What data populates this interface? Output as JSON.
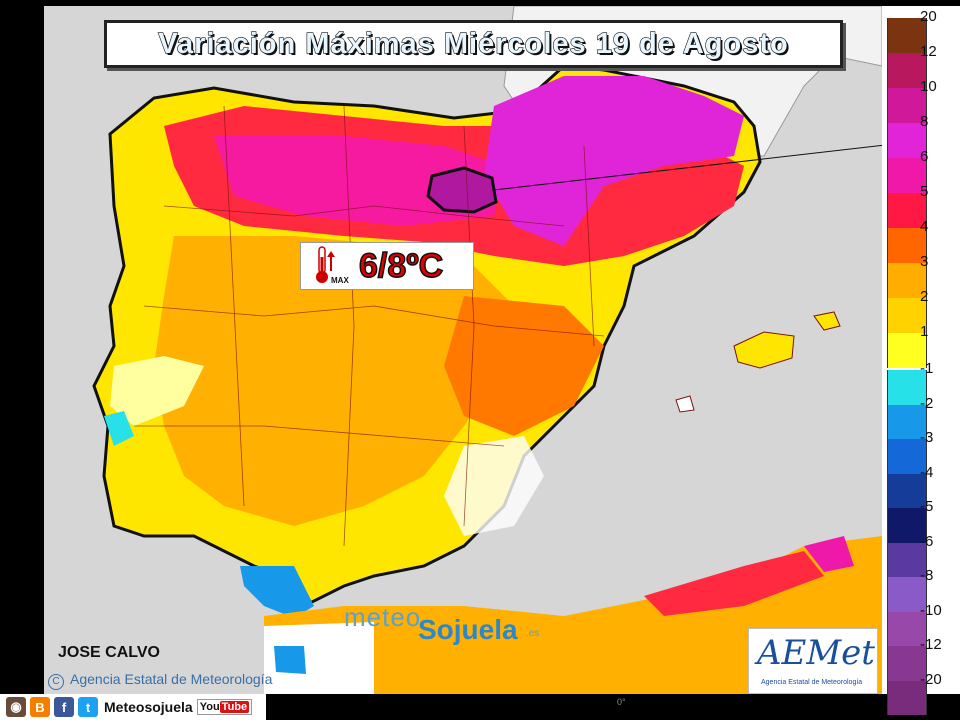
{
  "title": "Variación Máximas Miércoles 19 de Agosto",
  "annotation": {
    "value": "6/8ºC",
    "icon": "thermometer-max-icon",
    "icon_label": "MAX"
  },
  "author": "JOSE CALVO",
  "agency": "Agencia Estatal de Meteorología",
  "watermark": {
    "part1": "meteo",
    "part2": "Sojuela",
    "suffix": ".es"
  },
  "logo": {
    "name": "AEMet",
    "subtitle": "Agencia Estatal de Meteorología"
  },
  "footer": {
    "handle": "Meteosojuela",
    "youtube": "You",
    "youtube_tube": "Tube"
  },
  "lon_label": "0°",
  "legend": {
    "positive": [
      {
        "label": "20",
        "color": "#7a3410"
      },
      {
        "label": "12",
        "color": "#b8185e"
      },
      {
        "label": "10",
        "color": "#d0189a"
      },
      {
        "label": "8",
        "color": "#e224d8"
      },
      {
        "label": "6",
        "color": "#f018a8"
      },
      {
        "label": "5",
        "color": "#ff1844"
      },
      {
        "label": "4",
        "color": "#ff6600"
      },
      {
        "label": "3",
        "color": "#ffae00"
      },
      {
        "label": "2",
        "color": "#ffd200"
      },
      {
        "label": "1",
        "color": "#ffff20"
      }
    ],
    "negative": [
      {
        "label": "-1",
        "color": "#28e0e8"
      },
      {
        "label": "-2",
        "color": "#1898e8"
      },
      {
        "label": "-3",
        "color": "#1468d8"
      },
      {
        "label": "-4",
        "color": "#143c98"
      },
      {
        "label": "-5",
        "color": "#10186a"
      },
      {
        "label": "-6",
        "color": "#5a3aa0"
      },
      {
        "label": "-8",
        "color": "#8a5ac8"
      },
      {
        "label": "-10",
        "color": "#9848a8"
      },
      {
        "label": "-12",
        "color": "#883890"
      },
      {
        "label": "-20",
        "color": "#7a2c7c"
      }
    ]
  }
}
